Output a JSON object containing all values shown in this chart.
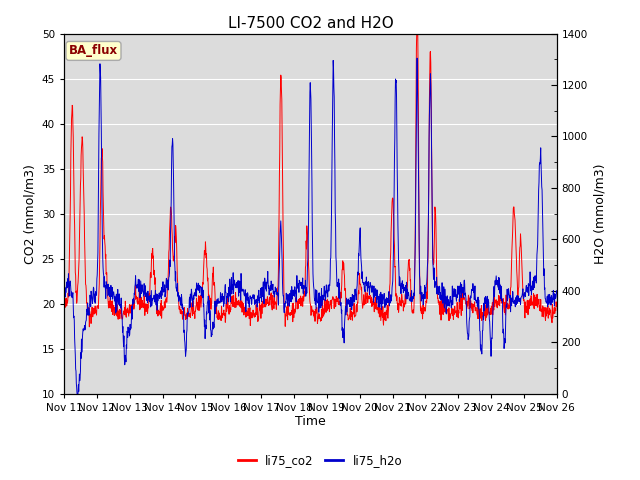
{
  "title": "LI-7500 CO2 and H2O",
  "xlabel": "Time",
  "ylabel_left": "CO2 (mmol/m3)",
  "ylabel_right": "H2O (mmol/m3)",
  "annotation_text": "BA_flux",
  "annotation_color": "#8B0000",
  "annotation_bg": "#FFFFCC",
  "annotation_edge": "#AAAAAA",
  "legend_labels": [
    "li75_co2",
    "li75_h2o"
  ],
  "co2_color": "#FF0000",
  "h2o_color": "#0000CC",
  "background_color": "#DCDCDC",
  "ylim_left": [
    10,
    50
  ],
  "ylim_right": [
    0,
    1400
  ],
  "yticks_left": [
    10,
    15,
    20,
    25,
    30,
    35,
    40,
    45,
    50
  ],
  "yticks_right": [
    0,
    200,
    400,
    600,
    800,
    1000,
    1200,
    1400
  ],
  "x_tick_labels": [
    "Nov 11",
    "Nov 12",
    "Nov 13",
    "Nov 14",
    "Nov 15",
    "Nov 16",
    "Nov 17",
    "Nov 18",
    "Nov 19",
    "Nov 20",
    "Nov 21",
    "Nov 22",
    "Nov 23",
    "Nov 24",
    "Nov 25",
    "Nov 26"
  ],
  "grid_color": "#FFFFFF",
  "title_fontsize": 11,
  "axis_label_fontsize": 9,
  "tick_fontsize": 7.5
}
